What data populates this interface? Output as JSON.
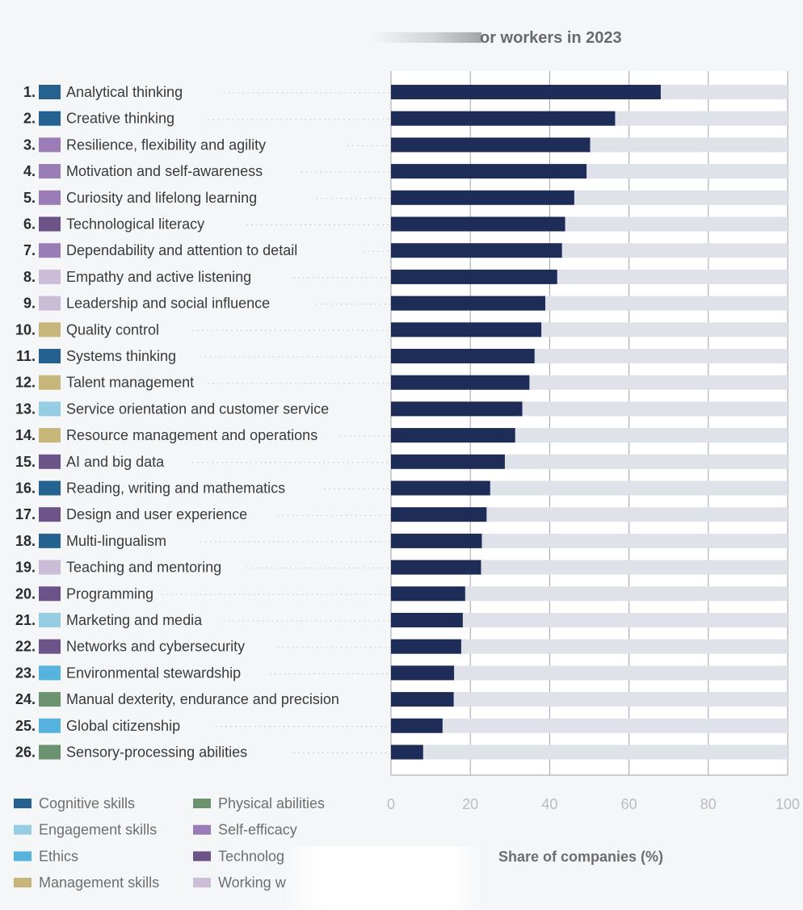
{
  "chart_data": {
    "type": "bar",
    "orientation": "horizontal",
    "title": "or workers in 2023",
    "xlabel": "Share of companies (%)",
    "xlim": [
      0,
      100
    ],
    "xticks": [
      "0",
      "20",
      "40",
      "60",
      "80",
      "100"
    ],
    "grid": true,
    "bar_color": "#1d2d57",
    "track_color": "#dfe2e8",
    "categories": [
      {
        "rank": "1.",
        "label": "Analytical thinking",
        "value": 68,
        "group": "cognitive"
      },
      {
        "rank": "2.",
        "label": "Creative thinking",
        "value": 56.5,
        "group": "cognitive"
      },
      {
        "rank": "3.",
        "label": "Resilience, flexibility and agility",
        "value": 50.2,
        "group": "self_efficacy"
      },
      {
        "rank": "4.",
        "label": "Motivation and self-awareness",
        "value": 49.3,
        "group": "self_efficacy"
      },
      {
        "rank": "5.",
        "label": "Curiosity and lifelong learning",
        "value": 46.2,
        "group": "self_efficacy"
      },
      {
        "rank": "6.",
        "label": "Technological literacy",
        "value": 43.9,
        "group": "technology"
      },
      {
        "rank": "7.",
        "label": "Dependability and attention to detail",
        "value": 43.1,
        "group": "self_efficacy"
      },
      {
        "rank": "8.",
        "label": "Empathy and active listening",
        "value": 41.9,
        "group": "working_with_others"
      },
      {
        "rank": "9.",
        "label": "Leadership and social influence",
        "value": 38.9,
        "group": "working_with_others"
      },
      {
        "rank": "10.",
        "label": "Quality control",
        "value": 37.9,
        "group": "management"
      },
      {
        "rank": "11.",
        "label": "Systems thinking",
        "value": 36.2,
        "group": "cognitive"
      },
      {
        "rank": "12.",
        "label": "Talent management",
        "value": 34.9,
        "group": "management"
      },
      {
        "rank": "13.",
        "label": "Service orientation and customer service",
        "value": 33.1,
        "group": "engagement"
      },
      {
        "rank": "14.",
        "label": "Resource management and operations",
        "value": 31.3,
        "group": "management"
      },
      {
        "rank": "15.",
        "label": "AI and big data",
        "value": 28.7,
        "group": "technology"
      },
      {
        "rank": "16.",
        "label": "Reading, writing and mathematics",
        "value": 25,
        "group": "cognitive"
      },
      {
        "rank": "17.",
        "label": "Design and user experience",
        "value": 24.1,
        "group": "technology"
      },
      {
        "rank": "18.",
        "label": "Multi-lingualism",
        "value": 22.9,
        "group": "cognitive"
      },
      {
        "rank": "19.",
        "label": "Teaching and mentoring",
        "value": 22.7,
        "group": "working_with_others"
      },
      {
        "rank": "20.",
        "label": "Programming",
        "value": 18.7,
        "group": "technology"
      },
      {
        "rank": "21.",
        "label": "Marketing and media",
        "value": 18.1,
        "group": "engagement"
      },
      {
        "rank": "22.",
        "label": "Networks and cybersecurity",
        "value": 17.7,
        "group": "technology"
      },
      {
        "rank": "23.",
        "label": "Environmental stewardship",
        "value": 15.9,
        "group": "ethics"
      },
      {
        "rank": "24.",
        "label": "Manual dexterity, endurance and precision",
        "value": 15.8,
        "group": "physical"
      },
      {
        "rank": "25.",
        "label": "Global citizenship",
        "value": 13,
        "group": "ethics"
      },
      {
        "rank": "26.",
        "label": "Sensory-processing abilities",
        "value": 8.1,
        "group": "physical"
      }
    ],
    "legend": [
      {
        "key": "cognitive",
        "label": "Cognitive skills",
        "color": "#26628f"
      },
      {
        "key": "engagement",
        "label": "Engagement skills",
        "color": "#96cde3"
      },
      {
        "key": "ethics",
        "label": "Ethics",
        "color": "#56b3de"
      },
      {
        "key": "management",
        "label": "Management skills",
        "color": "#c6b679"
      },
      {
        "key": "physical",
        "label": "Physical abilities",
        "color": "#6d9270"
      },
      {
        "key": "self_efficacy",
        "label": "Self-efficacy",
        "color": "#9a7db7"
      },
      {
        "key": "technology",
        "label": "Technolog",
        "color": "#6c5488"
      },
      {
        "key": "working_with_others",
        "label": "Working w",
        "color": "#cbbcd8"
      }
    ]
  }
}
